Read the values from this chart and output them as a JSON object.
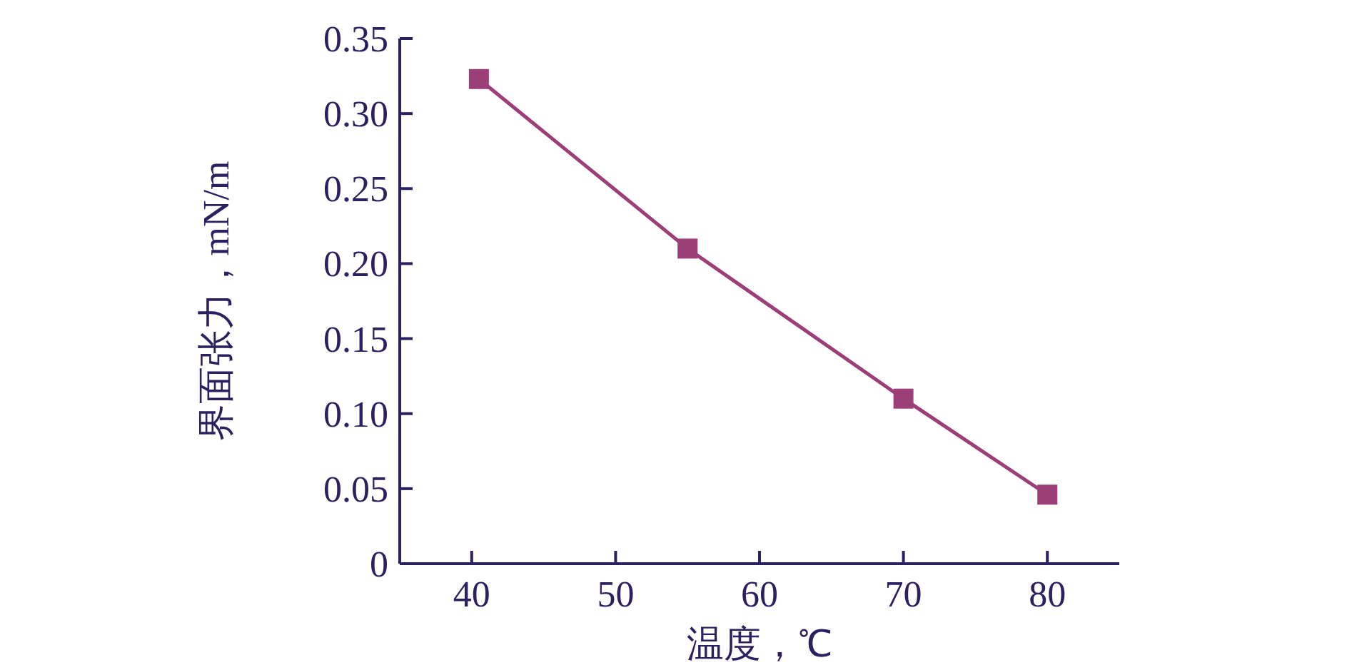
{
  "chart_data": {
    "type": "line",
    "xlabel": "温度，℃",
    "ylabel": "界面张力，mN/m",
    "x": [
      40.5,
      55,
      70,
      80
    ],
    "series": [
      {
        "color": "#9c3f78",
        "values": [
          0.323,
          0.21,
          0.11,
          0.046
        ]
      }
    ],
    "xlim": [
      35,
      85
    ],
    "xticks": [
      40,
      50,
      60,
      70,
      80
    ],
    "ylim": [
      0,
      0.35
    ],
    "yticks": [
      0,
      0.05,
      {
        "value": 0.1,
        "label": "0.10"
      },
      0.15,
      {
        "value": 0.2,
        "label": "0.20"
      },
      0.25,
      {
        "value": 0.3,
        "label": "0.30"
      },
      0.35
    ],
    "marker": "square",
    "line_style": "solid",
    "grid": false
  }
}
